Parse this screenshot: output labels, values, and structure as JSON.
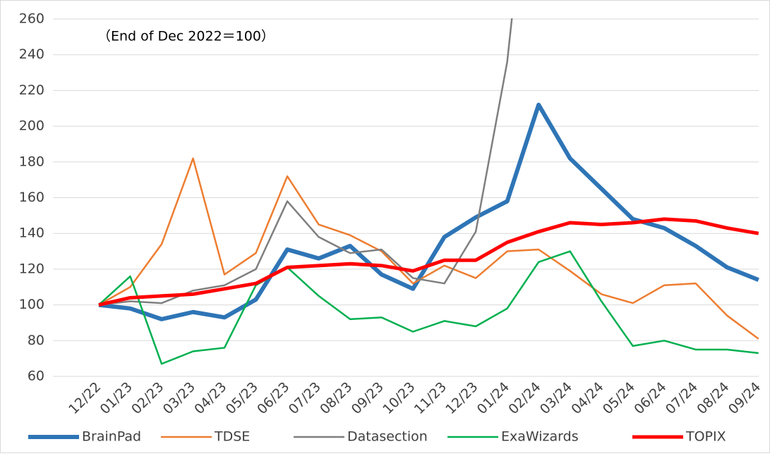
{
  "chart_data": {
    "type": "line",
    "annotation": "（End of Dec 2022＝100）",
    "categories": [
      "12/22",
      "01/23",
      "02/23",
      "03/23",
      "04/23",
      "05/23",
      "06/23",
      "07/23",
      "08/23",
      "09/23",
      "10/23",
      "11/23",
      "12/23",
      "01/24",
      "02/24",
      "03/24",
      "04/24",
      "05/24",
      "06/24",
      "07/24",
      "08/24",
      "09/24"
    ],
    "series": [
      {
        "name": "BrainPad",
        "color": "#2e75b6",
        "values": [
          100,
          98,
          92,
          96,
          93,
          103,
          131,
          126,
          133,
          117,
          109,
          138,
          149,
          158,
          212,
          182,
          165,
          148,
          143,
          133,
          121,
          114
        ]
      },
      {
        "name": "TDSE",
        "color": "#ed7d31",
        "values": [
          100,
          110,
          134,
          182,
          117,
          129,
          172,
          145,
          139,
          130,
          112,
          122,
          115,
          130,
          131,
          119,
          106,
          101,
          111,
          112,
          94,
          81
        ]
      },
      {
        "name": "Datasection",
        "color": "#7f7f7f",
        "values": [
          100,
          102,
          101,
          108,
          111,
          120,
          158,
          138,
          129,
          131,
          115,
          112,
          141,
          236,
          400,
          null,
          null,
          null,
          null,
          null,
          null,
          null
        ]
      },
      {
        "name": "ExaWizards",
        "color": "#00b050",
        "values": [
          100,
          116,
          67,
          74,
          76,
          111,
          121,
          105,
          92,
          93,
          85,
          91,
          88,
          98,
          124,
          130,
          102,
          77,
          80,
          75,
          75,
          73
        ]
      },
      {
        "name": "TOPIX",
        "color": "#ff0000",
        "values": [
          100,
          104,
          105,
          106,
          109,
          112,
          121,
          122,
          123,
          122,
          119,
          125,
          125,
          135,
          141,
          146,
          145,
          146,
          148,
          147,
          143,
          140
        ]
      }
    ],
    "ylim": [
      60,
      260
    ],
    "yticks": [
      60,
      80,
      100,
      120,
      140,
      160,
      180,
      200,
      220,
      240,
      260
    ],
    "grid": true
  }
}
